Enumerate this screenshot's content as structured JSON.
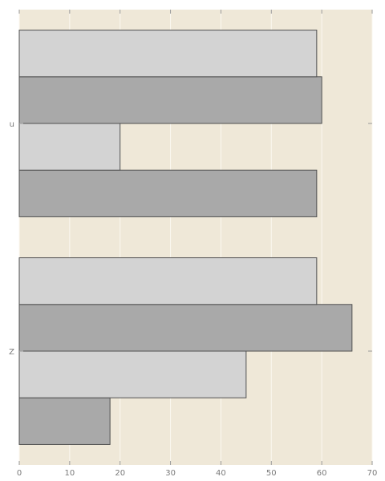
{
  "chart_data": {
    "type": "bar",
    "orientation": "horizontal",
    "title": "",
    "xlabel": "",
    "ylabel": "",
    "xlim": [
      0,
      70
    ],
    "x_ticks": [
      "0",
      "10",
      "20",
      "30",
      "40",
      "50",
      "60",
      "70"
    ],
    "grid": true,
    "legend": "none",
    "categories": [
      "Z",
      "u"
    ],
    "series": [
      {
        "color": "#a9a9a9",
        "values": [
          18,
          59
        ]
      },
      {
        "color": "#d3d3d3",
        "values": [
          45,
          20
        ]
      },
      {
        "color": "#a9a9a9",
        "values": [
          66,
          60
        ]
      },
      {
        "color": "#d3d3d3",
        "values": [
          59,
          59
        ]
      }
    ],
    "plot_background": "#efe8d8",
    "gridline_color": "#fbf8f0"
  }
}
